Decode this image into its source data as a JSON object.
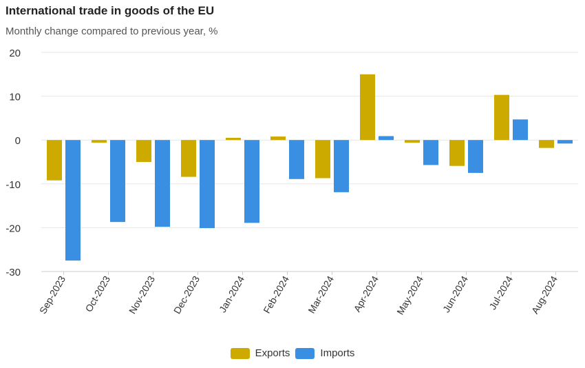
{
  "chart_data": {
    "type": "bar",
    "title": "International trade in goods of the EU",
    "subtitle": "Monthly change compared to previous year, %",
    "categories": [
      "Sep-2023",
      "Oct-2023",
      "Nov-2023",
      "Dec-2023",
      "Jan-2024",
      "Feb-2024",
      "Mar-2024",
      "Apr-2024",
      "May-2024",
      "Jun-2024",
      "Jul-2024",
      "Aug-2024"
    ],
    "series": [
      {
        "name": "Exports",
        "color": "#ccaa00",
        "values": [
          -9.2,
          -0.6,
          -5.0,
          -8.4,
          0.5,
          0.8,
          -8.7,
          15.0,
          -0.6,
          -5.9,
          10.3,
          -1.8
        ]
      },
      {
        "name": "Imports",
        "color": "#3b8fe3",
        "values": [
          -27.5,
          -18.7,
          -19.8,
          -20.1,
          -18.9,
          -8.9,
          -11.9,
          0.9,
          -5.7,
          -7.5,
          4.7,
          -0.8
        ]
      }
    ],
    "ylim": [
      -30,
      20
    ],
    "yticks": [
      20,
      10,
      0,
      -10,
      -20,
      -30
    ],
    "grid": true,
    "legend_position": "bottom"
  }
}
